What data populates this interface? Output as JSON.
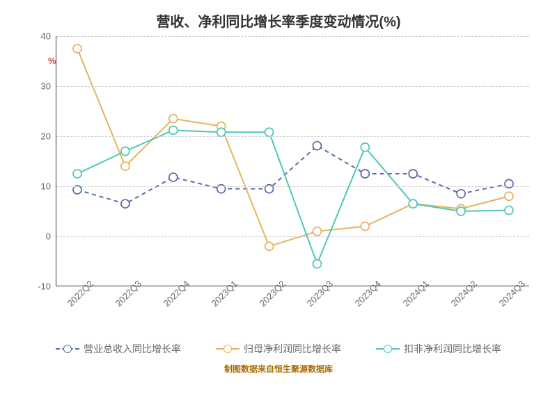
{
  "chart": {
    "title": "营收、净利同比增长率季度变动情况(%)",
    "title_fontsize": 20,
    "title_color": "#333333",
    "y_unit": "%",
    "y_unit_color": "#d94a3a",
    "footer": "制图数据来自恒生聚源数据库",
    "footer_color": "#a86c00",
    "background_color": "#ffffff",
    "grid_color": "#cccccc",
    "axis_color": "#333333",
    "tick_color": "#666666",
    "xlabels": [
      "2022Q2",
      "2022Q3",
      "2022Q4",
      "2023Q1",
      "2023Q2",
      "2023Q3",
      "2023Q4",
      "2024Q1",
      "2024Q2",
      "2024Q3"
    ],
    "xlabel_rotation": -45,
    "ylim": [
      -10,
      40
    ],
    "yticks": [
      -10,
      0,
      10,
      20,
      30,
      40
    ],
    "line_width": 2,
    "marker_radius": 6,
    "marker_stroke_width": 1.7,
    "marker_fill": "#ffffff",
    "series": [
      {
        "name": "营业总收入同比增长率",
        "color": "#5a6aa8",
        "dash": "6 5",
        "values": [
          9.3,
          6.5,
          11.8,
          9.5,
          9.5,
          18.1,
          12.5,
          12.5,
          8.5,
          10.5
        ]
      },
      {
        "name": "归母净利润同比增长率",
        "color": "#e6b35a",
        "dash": null,
        "values": [
          37.5,
          14.0,
          23.5,
          22.0,
          -2.0,
          1.0,
          2.0,
          6.5,
          5.5,
          8.0
        ]
      },
      {
        "name": "扣非净利润同比增长率",
        "color": "#4fc6b8",
        "dash": null,
        "values": [
          12.5,
          17.0,
          21.2,
          20.8,
          20.8,
          -5.5,
          17.8,
          6.5,
          5.0,
          5.2
        ]
      }
    ]
  }
}
